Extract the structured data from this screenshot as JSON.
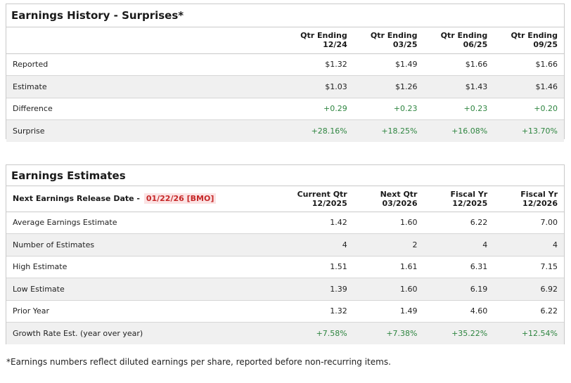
{
  "history": {
    "title": "Earnings History - Surprises*",
    "columns": [
      {
        "line1": "Qtr Ending",
        "line2": "12/24"
      },
      {
        "line1": "Qtr Ending",
        "line2": "03/25"
      },
      {
        "line1": "Qtr Ending",
        "line2": "06/25"
      },
      {
        "line1": "Qtr Ending",
        "line2": "09/25"
      }
    ],
    "rows": [
      {
        "label": "Reported",
        "values": [
          "$1.32",
          "$1.49",
          "$1.66",
          "$1.66"
        ]
      },
      {
        "label": "Estimate",
        "values": [
          "$1.03",
          "$1.26",
          "$1.43",
          "$1.46"
        ]
      },
      {
        "label": "Difference",
        "values": [
          "+0.29",
          "+0.23",
          "+0.23",
          "+0.20"
        ]
      },
      {
        "label": "Surprise",
        "values": [
          "+28.16%",
          "+18.25%",
          "+16.08%",
          "+13.70%"
        ]
      }
    ]
  },
  "estimates": {
    "title": "Earnings Estimates",
    "release_label": "Next Earnings Release Date -",
    "release_date": "01/22/26 [BMO]",
    "columns": [
      {
        "line1": "Current Qtr",
        "line2": "12/2025"
      },
      {
        "line1": "Next Qtr",
        "line2": "03/2026"
      },
      {
        "line1": "Fiscal Yr",
        "line2": "12/2025"
      },
      {
        "line1": "Fiscal Yr",
        "line2": "12/2026"
      }
    ],
    "rows": [
      {
        "label": "Average Earnings Estimate",
        "values": [
          "1.42",
          "1.60",
          "6.22",
          "7.00"
        ]
      },
      {
        "label": "Number of Estimates",
        "values": [
          "4",
          "2",
          "4",
          "4"
        ]
      },
      {
        "label": "High Estimate",
        "values": [
          "1.51",
          "1.61",
          "6.31",
          "7.15"
        ]
      },
      {
        "label": "Low Estimate",
        "values": [
          "1.39",
          "1.60",
          "6.19",
          "6.92"
        ]
      },
      {
        "label": "Prior Year",
        "values": [
          "1.32",
          "1.49",
          "4.60",
          "6.22"
        ]
      },
      {
        "label": "Growth Rate Est. (year over year)",
        "values": [
          "+7.58%",
          "+7.38%",
          "+35.22%",
          "+12.54%"
        ]
      }
    ]
  },
  "colors": {
    "positive": "#2e8540",
    "release_date_text": "#c62828",
    "release_date_bg": "#fbe3e4",
    "row_alt_bg": "#f0f0f0",
    "border": "#c9c9c9"
  },
  "footnote": "*Earnings numbers reflect diluted earnings per share, reported before non-recurring items."
}
